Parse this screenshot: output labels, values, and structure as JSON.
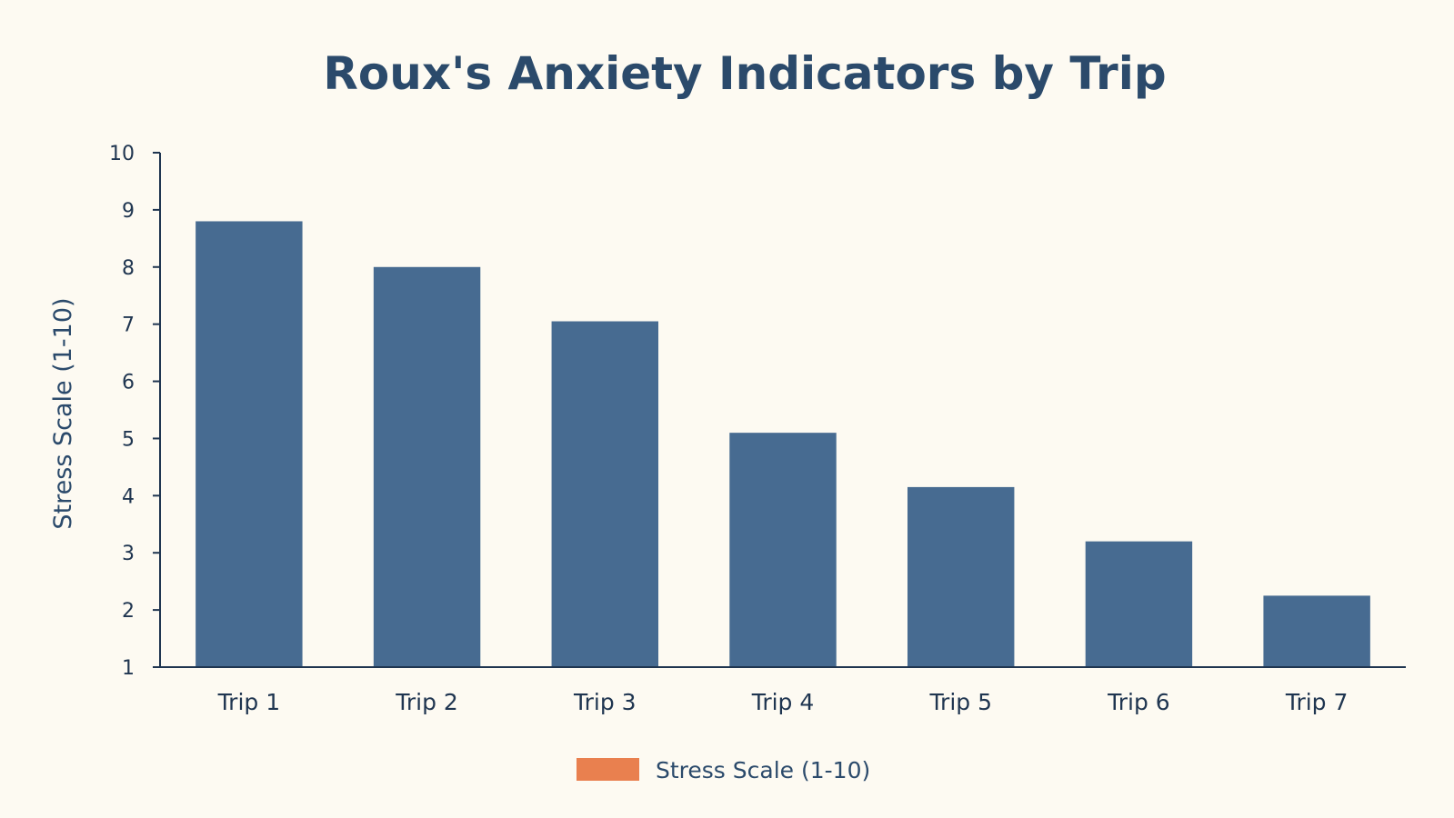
{
  "chart_data": {
    "type": "bar",
    "title": "Roux's Anxiety Indicators by Trip",
    "xlabel": "",
    "ylabel": "Stress Scale (1-10)",
    "categories": [
      "Trip 1",
      "Trip 2",
      "Trip 3",
      "Trip 4",
      "Trip 5",
      "Trip 6",
      "Trip 7"
    ],
    "series": [
      {
        "name": "Stress Scale (1-10)",
        "values": [
          8.8,
          8.0,
          7.05,
          5.1,
          4.15,
          3.2,
          2.25
        ]
      }
    ],
    "ylim": [
      1,
      10
    ],
    "yticks": [
      "1",
      "2",
      "3",
      "4",
      "5",
      "6",
      "7",
      "8",
      "9",
      "10"
    ],
    "bar_color": "#476b91",
    "legend_color": "#e9804f",
    "legend_position": "bottom-center",
    "grid": false
  }
}
